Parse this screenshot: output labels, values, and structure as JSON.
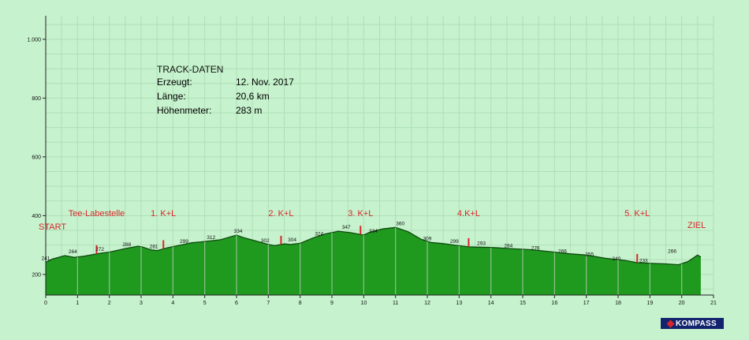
{
  "chart_data": {
    "type": "area",
    "title": "",
    "xlabel": "",
    "ylabel": "",
    "xlim": [
      0,
      21
    ],
    "ylim": [
      130,
      1080
    ],
    "x_ticks": [
      "0",
      "1",
      "2",
      "3",
      "4",
      "5",
      "6",
      "7",
      "8",
      "9",
      "10",
      "11",
      "12",
      "13",
      "14",
      "15",
      "16",
      "17",
      "18",
      "19",
      "20",
      "21"
    ],
    "y_ticks": [
      {
        "value": 200,
        "label": "200"
      },
      {
        "value": 400,
        "label": "400"
      },
      {
        "value": 600,
        "label": "600"
      },
      {
        "value": 800,
        "label": "800"
      },
      {
        "value": 1000,
        "label": "1.000"
      }
    ],
    "grid": true,
    "fill_color": "#1f9a1f",
    "line_color": "#0f4a0f",
    "series": [
      {
        "name": "",
        "x": [
          0,
          0.2,
          0.6,
          0.9,
          1.2,
          1.5,
          1.7,
          2.0,
          2.5,
          2.9,
          3.05,
          3.3,
          3.5,
          3.8,
          4.2,
          4.6,
          5.0,
          5.5,
          6.0,
          6.2,
          6.6,
          7.0,
          7.2,
          7.5,
          7.7,
          8.0,
          8.4,
          8.8,
          9.2,
          9.6,
          10.0,
          10.2,
          10.6,
          11.0,
          11.4,
          11.8,
          12.1,
          12.5,
          12.9,
          13.3,
          13.6,
          14.0,
          14.6,
          15.3,
          16.0,
          16.5,
          17.0,
          17.6,
          18.2,
          18.6,
          19.0,
          19.5,
          19.9,
          20.2,
          20.5,
          20.6
        ],
        "y": [
          241,
          252,
          264,
          258,
          262,
          268,
          272,
          276,
          288,
          296,
          293,
          284,
          281,
          290,
          299,
          308,
          312,
          318,
          334,
          326,
          314,
          302,
          298,
          304,
          302,
          306,
          324,
          338,
          347,
          342,
          334,
          344,
          355,
          360,
          345,
          320,
          309,
          305,
          299,
          294,
          293,
          292,
          288,
          284,
          276,
          270,
          266,
          255,
          248,
          240,
          238,
          236,
          233,
          244,
          266,
          259
        ]
      }
    ],
    "data_labels": [
      {
        "x": 0.0,
        "y": 241,
        "label": "241"
      },
      {
        "x": 0.85,
        "y": 264,
        "label": "264"
      },
      {
        "x": 1.7,
        "y": 272,
        "label": "272"
      },
      {
        "x": 2.55,
        "y": 288,
        "label": "288"
      },
      {
        "x": 3.4,
        "y": 281,
        "label": "281"
      },
      {
        "x": 4.35,
        "y": 299,
        "label": "299"
      },
      {
        "x": 5.2,
        "y": 312,
        "label": "312"
      },
      {
        "x": 6.05,
        "y": 334,
        "label": "334"
      },
      {
        "x": 6.9,
        "y": 302,
        "label": "302"
      },
      {
        "x": 7.75,
        "y": 304,
        "label": "304"
      },
      {
        "x": 8.6,
        "y": 324,
        "label": "324"
      },
      {
        "x": 9.45,
        "y": 347,
        "label": "347"
      },
      {
        "x": 10.3,
        "y": 334,
        "label": "334"
      },
      {
        "x": 11.15,
        "y": 360,
        "label": "360"
      },
      {
        "x": 12.0,
        "y": 309,
        "label": "309"
      },
      {
        "x": 12.85,
        "y": 299,
        "label": "299"
      },
      {
        "x": 13.7,
        "y": 293,
        "label": "293"
      },
      {
        "x": 14.55,
        "y": 284,
        "label": "284"
      },
      {
        "x": 15.4,
        "y": 276,
        "label": "276"
      },
      {
        "x": 16.25,
        "y": 266,
        "label": "266"
      },
      {
        "x": 17.1,
        "y": 255,
        "label": "255"
      },
      {
        "x": 17.95,
        "y": 240,
        "label": "240"
      },
      {
        "x": 18.8,
        "y": 233,
        "label": "233"
      },
      {
        "x": 19.7,
        "y": 266,
        "label": "266"
      }
    ],
    "waypoints": [
      {
        "x": 1.6,
        "label": "Tee-Labestelle"
      },
      {
        "x": 3.7,
        "label": "1. K+L"
      },
      {
        "x": 7.4,
        "label": "2. K+L"
      },
      {
        "x": 9.9,
        "label": "3. K+L"
      },
      {
        "x": 13.3,
        "label": "4.K+L"
      },
      {
        "x": 18.6,
        "label": "5. K+L"
      }
    ],
    "start_label": "START",
    "end_label": "ZIEL",
    "marker_color": "#d9262b"
  },
  "track_info": {
    "title": "TRACK-DATEN",
    "rows": [
      {
        "key": "Erzeugt:",
        "value": "12. Nov. 2017"
      },
      {
        "key": "Länge:",
        "value": "20,6 km"
      },
      {
        "key": "Höhenmeter:",
        "value": "283 m"
      }
    ]
  },
  "logo": {
    "text": "KOMPASS"
  }
}
